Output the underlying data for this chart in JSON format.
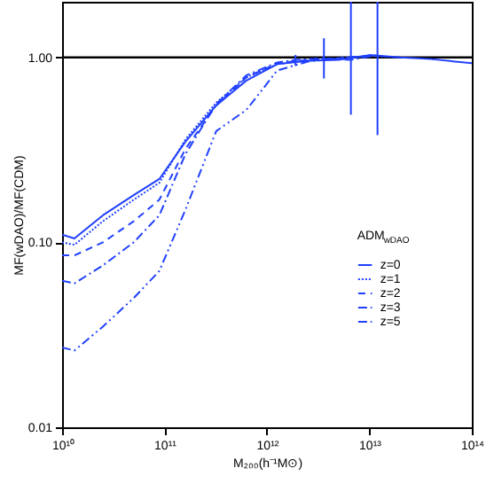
{
  "chart_data": {
    "type": "line",
    "xlabel": "M₂₀₀(h⁻¹M⊙)",
    "ylabel": "MF(wDAO)/MF(CDM)",
    "legend_title": "ADM$_{wDAO}$",
    "log": "xy",
    "legend": "right",
    "grid": false,
    "marker": "none",
    "x": [
      10000000000.0,
      13200000000.0,
      25000000000.0,
      50000000000.0,
      89000000000.0,
      160000000000.0,
      320000000000.0,
      630000000000.0,
      1260000000000.0,
      2500000000000.0,
      5000000000000.0,
      10000000000000.0,
      20000000000000.0,
      40000000000000.0,
      100000000000000.0
    ],
    "xlim": [
      10000000000.0,
      100000000000000.0
    ],
    "xticks": [
      {
        "value": 10000000000.0,
        "label": "10¹⁰"
      },
      {
        "value": 100000000000.0,
        "label": "10¹¹"
      },
      {
        "value": 1000000000000.0,
        "label": "10¹²"
      },
      {
        "value": 10000000000000.0,
        "label": "10¹³"
      },
      {
        "value": 100000000000000.0,
        "label": "10¹⁴"
      }
    ],
    "ylim": [
      0.01,
      2.0
    ],
    "yticks": [
      {
        "value": 0.01,
        "label": "0.01"
      },
      {
        "value": 0.1,
        "label": "0.10"
      },
      {
        "value": 1,
        "label": "1.00"
      }
    ],
    "ref_lines": [
      {
        "axis": "y",
        "value": 1,
        "color": "#000000"
      }
    ],
    "series": [
      {
        "name": "z=0",
        "color": "#2040ff",
        "line_style": "solid",
        "values": [
          0.11,
          0.105,
          0.14,
          0.18,
          0.22,
          0.35,
          0.55,
          0.75,
          0.92,
          0.96,
          0.97,
          1.03,
          1.0,
          0.98,
          0.93
        ]
      },
      {
        "name": "z=1",
        "color": "#2040ff",
        "line_style": "dotted",
        "values": [
          0.1,
          0.097,
          0.13,
          0.17,
          0.21,
          0.36,
          0.57,
          0.78,
          0.92,
          0.96,
          0.98,
          1.02,
          1.0,
          null,
          null
        ]
      },
      {
        "name": "z=2",
        "color": "#2040ff",
        "line_style": "dashed",
        "values": [
          0.085,
          0.085,
          0.1,
          0.13,
          0.17,
          0.32,
          0.55,
          0.78,
          0.93,
          0.97,
          0.99,
          1.02,
          null,
          null,
          null
        ]
      },
      {
        "name": "z=3",
        "color": "#2040ff",
        "line_style": "dashdot",
        "x": [
          10000000000.0,
          13200000000.0,
          25000000000.0,
          50000000000.0,
          89000000000.0,
          160000000000.0,
          320000000000.0,
          630000000000.0,
          1260000000000.0,
          1900000000000.0,
          3600000000000.0,
          6600000000000.0,
          12000000000000.0
        ],
        "values": [
          0.062,
          0.06,
          0.075,
          0.1,
          0.14,
          0.3,
          0.56,
          0.8,
          0.94,
          0.97,
          0.99,
          0.97,
          1.03
        ],
        "errors": [
          null,
          null,
          null,
          null,
          null,
          null,
          null,
          null,
          null,
          [
            0.9,
            1.03
          ],
          [
            0.77,
            1.27
          ],
          [
            0.49,
            2.0
          ],
          [
            0.38,
            2.0
          ]
        ]
      },
      {
        "name": "z=5",
        "color": "#2040ff",
        "line_style": "dashdotdot",
        "values": [
          0.027,
          0.026,
          0.035,
          0.05,
          0.07,
          0.15,
          0.4,
          0.52,
          0.85,
          0.95,
          0.99,
          1.02,
          null,
          null,
          null
        ]
      }
    ]
  }
}
